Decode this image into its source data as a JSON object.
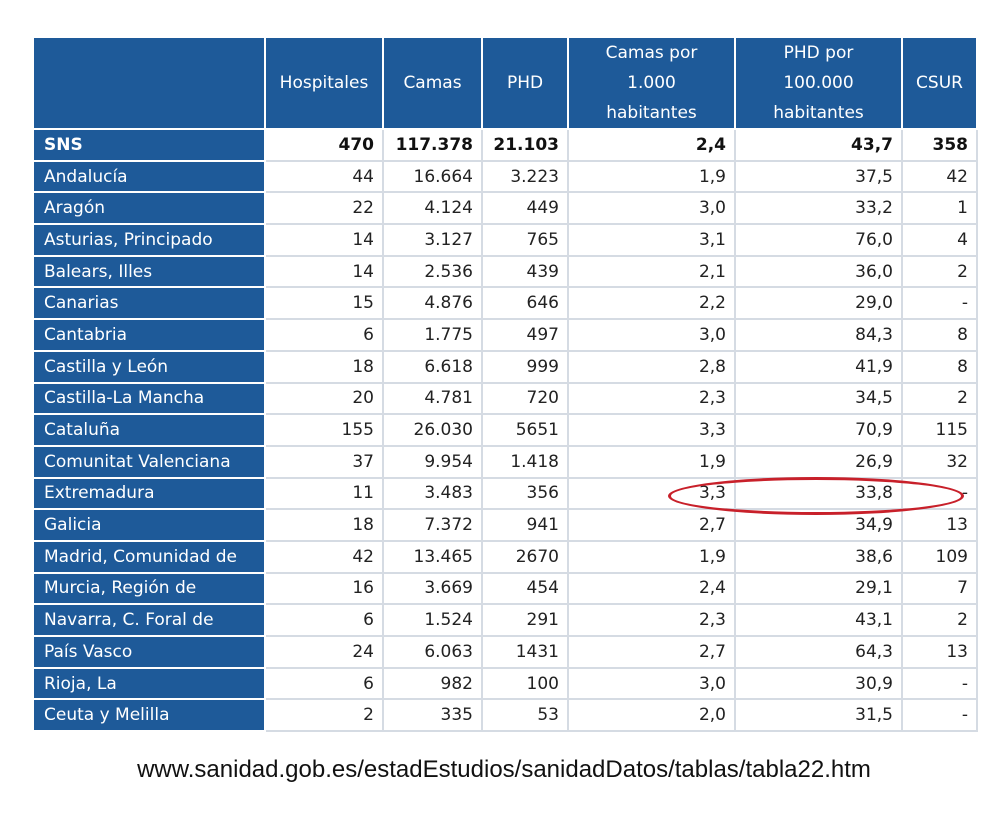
{
  "table": {
    "headers": [
      "",
      "Hospitales",
      "Camas",
      "PHD",
      "Camas por\n1.000\nhabitantes",
      "PHD por\n100.000\nhabitantes",
      "CSUR"
    ],
    "total_row": [
      "SNS",
      "470",
      "117.378",
      "21.103",
      "2,4",
      "43,7",
      "358"
    ],
    "rows": [
      [
        "Andalucía",
        "44",
        "16.664",
        "3.223",
        "1,9",
        "37,5",
        "42"
      ],
      [
        "Aragón",
        "22",
        "4.124",
        "449",
        "3,0",
        "33,2",
        "1"
      ],
      [
        "Asturias, Principado",
        "14",
        "3.127",
        "765",
        "3,1",
        "76,0",
        "4"
      ],
      [
        "Balears, Illes",
        "14",
        "2.536",
        "439",
        "2,1",
        "36,0",
        "2"
      ],
      [
        "Canarias",
        "15",
        "4.876",
        "646",
        "2,2",
        "29,0",
        "-"
      ],
      [
        "Cantabria",
        "6",
        "1.775",
        "497",
        "3,0",
        "84,3",
        "8"
      ],
      [
        "Castilla y León",
        "18",
        "6.618",
        "999",
        "2,8",
        "41,9",
        "8"
      ],
      [
        "Castilla-La Mancha",
        "20",
        "4.781",
        "720",
        "2,3",
        "34,5",
        "2"
      ],
      [
        "Cataluña",
        "155",
        "26.030",
        "5651",
        "3,3",
        "70,9",
        "115"
      ],
      [
        "Comunitat Valenciana",
        "37",
        "9.954",
        "1.418",
        "1,9",
        "26,9",
        "32"
      ],
      [
        "Extremadura",
        "11",
        "3.483",
        "356",
        "3,3",
        "33,8",
        "-"
      ],
      [
        "Galicia",
        "18",
        "7.372",
        "941",
        "2,7",
        "34,9",
        "13"
      ],
      [
        "Madrid, Comunidad de",
        "42",
        "13.465",
        "2670",
        "1,9",
        "38,6",
        "109"
      ],
      [
        "Murcia, Región de",
        "16",
        "3.669",
        "454",
        "2,4",
        "29,1",
        "7"
      ],
      [
        "Navarra, C. Foral de",
        "6",
        "1.524",
        "291",
        "2,3",
        "43,1",
        "2"
      ],
      [
        "País Vasco",
        "24",
        "6.063",
        "1431",
        "2,7",
        "64,3",
        "13"
      ],
      [
        "Rioja, La",
        "6",
        "982",
        "100",
        "3,0",
        "30,9",
        "-"
      ],
      [
        "Ceuta y Melilla",
        "2",
        "335",
        "53",
        "2,0",
        "31,5",
        "-"
      ]
    ],
    "header_color": "#1e5a99",
    "highlight_color": "#c8202a"
  },
  "source_url": "www.sanidad.gob.es/estadEstudios/sanidadDatos/tablas/tabla22.htm"
}
